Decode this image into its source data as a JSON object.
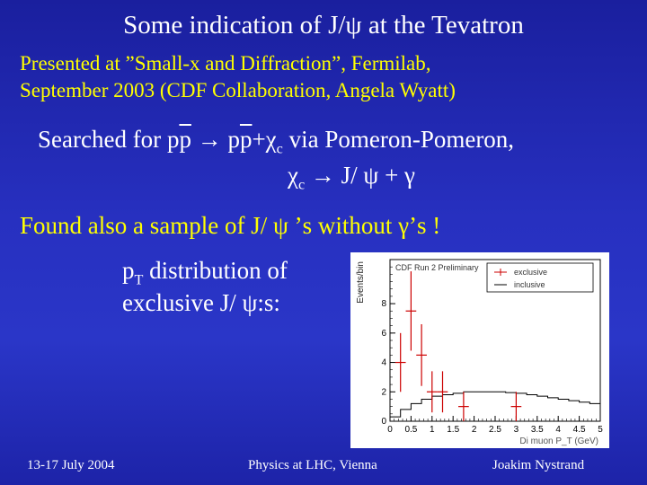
{
  "slide": {
    "title": "Some indication of J/ψ at the Tevatron",
    "subtitle_line1": "Presented at ”Small-x and Diffraction”, Fermilab,",
    "subtitle_line2": "September 2003 (CDF Collaboration, Angela Wyatt)",
    "search": {
      "prefix": "Searched for ",
      "p1": "p",
      "p1bar": "p",
      "arrow": " → ",
      "p2": "p",
      "p2bar": "p",
      "plus_chi": "+χ",
      "chi_sub": "c",
      "suffix": "  via Pomeron-Pomeron,",
      "line2_chi": "χ",
      "line2_sub": "c",
      "line2_rest": " → J/ ψ + γ"
    },
    "found": "Found also a sample of J/ ψ ’s without γ’s !",
    "pt_caption": {
      "p": "p",
      "sub": "T",
      "rest": " distribution of",
      "line2": "exclusive J/ ψ:s:"
    }
  },
  "footer": {
    "date": "13-17 July 2004",
    "conference": "Physics at LHC, Vienna",
    "author": "Joakim Nystrand"
  },
  "chart_data": {
    "type": "scatter",
    "title": "CDF Run 2 Preliminary",
    "xlabel": "Di muon P_T (GeV)",
    "ylabel": "Events/bin",
    "xlim": [
      0,
      5
    ],
    "ylim": [
      0,
      11
    ],
    "xticks": [
      "0",
      "0.5",
      "1",
      "1.5",
      "2",
      "2.5",
      "3",
      "3.5",
      "4",
      "4.5",
      "5"
    ],
    "yticks": [
      "0",
      "2",
      "4",
      "6",
      "8"
    ],
    "legend": [
      "exclusive",
      "inclusive"
    ],
    "series": [
      {
        "name": "exclusive",
        "points": [
          {
            "x": 0.25,
            "y": 4,
            "yerr": 2
          },
          {
            "x": 0.5,
            "y": 7.5,
            "yerr": 2.7
          },
          {
            "x": 0.75,
            "y": 4.5,
            "yerr": 2.1
          },
          {
            "x": 1.0,
            "y": 2,
            "yerr": 1.4
          },
          {
            "x": 1.25,
            "y": 2,
            "yerr": 1.4
          },
          {
            "x": 1.75,
            "y": 1,
            "yerr": 1.0
          },
          {
            "x": 3.0,
            "y": 1,
            "yerr": 1.0
          }
        ]
      },
      {
        "name": "inclusive",
        "x": [
          0,
          0.25,
          0.5,
          0.75,
          1.0,
          1.25,
          1.5,
          1.75,
          2.0,
          2.25,
          2.5,
          2.75,
          3.0,
          3.25,
          3.5,
          3.75,
          4.0,
          4.25,
          4.5,
          4.75
        ],
        "y": [
          0.3,
          0.8,
          1.2,
          1.5,
          1.7,
          1.8,
          1.9,
          2.0,
          2.0,
          2.0,
          2.0,
          1.95,
          1.9,
          1.8,
          1.7,
          1.6,
          1.5,
          1.4,
          1.3,
          1.2
        ]
      }
    ]
  }
}
